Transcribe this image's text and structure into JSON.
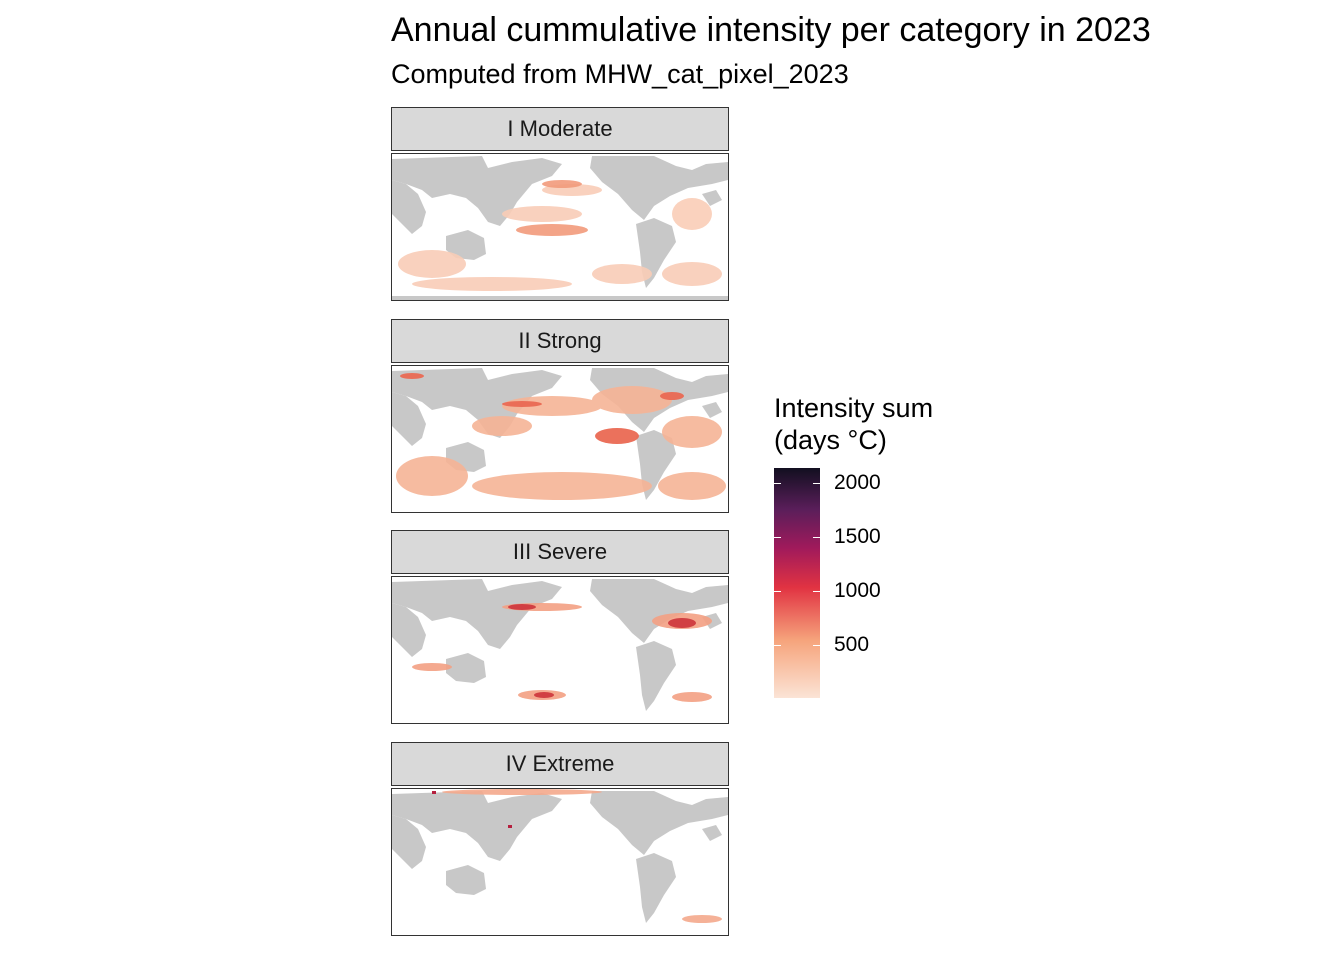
{
  "title": "Annual cummulative intensity per category in 2023",
  "subtitle": "Computed from MHW_cat_pixel_2023",
  "panels": [
    {
      "label": "I Moderate"
    },
    {
      "label": "II Strong"
    },
    {
      "label": "III Severe"
    },
    {
      "label": "IV Extreme"
    }
  ],
  "legend": {
    "title_line1": "Intensity sum",
    "title_line2": "(days °C)",
    "ticks": [
      "2000",
      "1500",
      "1000",
      "500"
    ]
  },
  "colors": {
    "land": "#c8c8c8",
    "ocean": "#ffffff",
    "strip_bg": "#d9d9d9",
    "scale": [
      "#fbe4d6",
      "#f6a47c",
      "#e13342",
      "#a11a5b",
      "#5a1e5a",
      "#120f20"
    ]
  }
}
